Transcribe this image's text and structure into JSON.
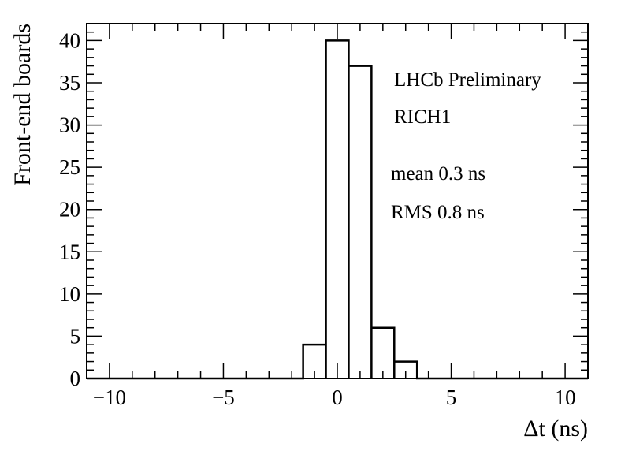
{
  "chart_data": {
    "type": "histogram",
    "xlabel": "Δt (ns)",
    "ylabel": "Front-end boards",
    "xlim": [
      -11,
      11
    ],
    "ylim": [
      0,
      42
    ],
    "bin_width": 1,
    "bins": [
      {
        "low": -1.5,
        "high": -0.5,
        "count": 4
      },
      {
        "low": -0.5,
        "high": 0.5,
        "count": 40
      },
      {
        "low": 0.5,
        "high": 1.5,
        "count": 37
      },
      {
        "low": 1.5,
        "high": 2.5,
        "count": 6
      },
      {
        "low": 2.5,
        "high": 3.5,
        "count": 2
      }
    ],
    "x_ticks": [
      -10,
      -5,
      0,
      5,
      10
    ],
    "x_tick_labels": [
      "−10",
      "−5",
      "0",
      "5",
      "10"
    ],
    "y_ticks": [
      0,
      5,
      10,
      15,
      20,
      25,
      30,
      35,
      40
    ],
    "y_tick_labels": [
      "0",
      "5",
      "10",
      "15",
      "20",
      "25",
      "30",
      "35",
      "40"
    ],
    "annotations": [
      "LHCb Preliminary",
      "RICH1",
      "mean 0.3 ns",
      "RMS 0.8 ns"
    ],
    "grid": false,
    "legend": "none",
    "line_color": "#000000"
  }
}
